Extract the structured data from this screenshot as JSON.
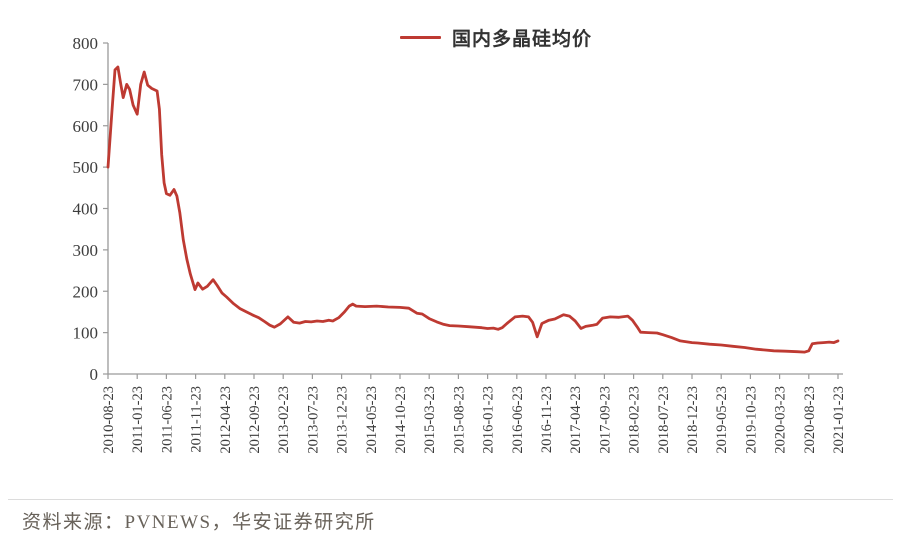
{
  "page": {
    "background_color": "#ffffff"
  },
  "legend": {
    "label": "国内多晶硅均价",
    "swatch_color": "#BE3A32"
  },
  "footer": {
    "source": "资料来源：PVNEWS，华安证券研究所"
  },
  "chart_data": {
    "type": "line",
    "title": "",
    "xlabel": "",
    "ylabel": "",
    "legend": [
      "国内多晶硅均价"
    ],
    "legend_position": "top-center",
    "grid": false,
    "ylim": [
      0,
      800
    ],
    "y_ticks": [
      0,
      100,
      200,
      300,
      400,
      500,
      600,
      700,
      800
    ],
    "x_range_months": [
      0,
      125
    ],
    "x_tick_months": [
      0,
      5,
      10,
      15,
      20,
      25,
      30,
      35,
      40,
      45,
      50,
      55,
      60,
      65,
      70,
      75,
      80,
      85,
      90,
      95,
      100,
      105,
      110,
      115,
      120,
      125
    ],
    "x_tick_labels": [
      "2010-08-23",
      "2011-01-23",
      "2011-06-23",
      "2011-11-23",
      "2012-04-23",
      "2012-09-23",
      "2013-02-23",
      "2013-07-23",
      "2013-12-23",
      "2014-05-23",
      "2014-10-23",
      "2015-03-23",
      "2015-08-23",
      "2016-01-23",
      "2016-06-23",
      "2016-11-23",
      "2017-04-23",
      "2017-09-23",
      "2018-02-23",
      "2018-07-23",
      "2018-12-23",
      "2019-05-23",
      "2019-10-23",
      "2020-03-23",
      "2020-08-23",
      "2021-01-23"
    ],
    "axis_color": "#9a9a9a",
    "tick_label_color": "#3d3d3d",
    "series": [
      {
        "name": "国内多晶硅均价",
        "color": "#BE3A32",
        "points": [
          [
            0,
            500
          ],
          [
            0.7,
            640
          ],
          [
            1.2,
            735
          ],
          [
            1.7,
            742
          ],
          [
            2.2,
            700
          ],
          [
            2.6,
            668
          ],
          [
            3.2,
            700
          ],
          [
            3.7,
            688
          ],
          [
            4.3,
            650
          ],
          [
            5.0,
            628
          ],
          [
            5.6,
            700
          ],
          [
            6.2,
            730
          ],
          [
            6.8,
            698
          ],
          [
            7.5,
            690
          ],
          [
            8.4,
            684
          ],
          [
            8.8,
            640
          ],
          [
            9.2,
            530
          ],
          [
            9.6,
            462
          ],
          [
            10.0,
            436
          ],
          [
            10.6,
            432
          ],
          [
            11.3,
            446
          ],
          [
            11.8,
            430
          ],
          [
            12.3,
            390
          ],
          [
            12.9,
            324
          ],
          [
            13.5,
            278
          ],
          [
            14.1,
            242
          ],
          [
            14.9,
            204
          ],
          [
            15.4,
            220
          ],
          [
            16.2,
            205
          ],
          [
            17.0,
            212
          ],
          [
            18.0,
            228
          ],
          [
            18.7,
            214
          ],
          [
            19.5,
            196
          ],
          [
            20.3,
            186
          ],
          [
            21.5,
            170
          ],
          [
            22.6,
            158
          ],
          [
            23.7,
            150
          ],
          [
            24.7,
            143
          ],
          [
            25.8,
            136
          ],
          [
            26.8,
            127
          ],
          [
            27.7,
            118
          ],
          [
            28.5,
            113
          ],
          [
            29.5,
            121
          ],
          [
            30.8,
            138
          ],
          [
            31.8,
            125
          ],
          [
            32.8,
            123
          ],
          [
            33.8,
            127
          ],
          [
            34.8,
            126
          ],
          [
            35.8,
            128
          ],
          [
            36.8,
            127
          ],
          [
            37.8,
            130
          ],
          [
            38.5,
            128
          ],
          [
            39.5,
            136
          ],
          [
            40.5,
            150
          ],
          [
            41.3,
            164
          ],
          [
            41.9,
            169
          ],
          [
            42.5,
            164
          ],
          [
            44.0,
            163
          ],
          [
            46.0,
            164
          ],
          [
            48.0,
            162
          ],
          [
            50.0,
            161
          ],
          [
            51.5,
            159
          ],
          [
            52.9,
            147
          ],
          [
            53.8,
            145
          ],
          [
            55.0,
            134
          ],
          [
            56.3,
            126
          ],
          [
            57.5,
            120
          ],
          [
            58.5,
            117
          ],
          [
            60.0,
            116
          ],
          [
            62.0,
            114
          ],
          [
            64.0,
            112
          ],
          [
            65.0,
            110
          ],
          [
            66.0,
            111
          ],
          [
            66.8,
            108
          ],
          [
            67.5,
            112
          ],
          [
            68.3,
            122
          ],
          [
            69.7,
            138
          ],
          [
            71.0,
            140
          ],
          [
            72.0,
            138
          ],
          [
            72.7,
            125
          ],
          [
            73.5,
            90
          ],
          [
            74.3,
            122
          ],
          [
            75.5,
            130
          ],
          [
            76.5,
            133
          ],
          [
            78.0,
            143
          ],
          [
            79.0,
            140
          ],
          [
            80.0,
            128
          ],
          [
            81.0,
            110
          ],
          [
            81.8,
            115
          ],
          [
            83.0,
            118
          ],
          [
            83.7,
            120
          ],
          [
            84.7,
            135
          ],
          [
            86.0,
            138
          ],
          [
            87.5,
            137
          ],
          [
            89.0,
            140
          ],
          [
            89.8,
            130
          ],
          [
            90.6,
            114
          ],
          [
            91.2,
            101
          ],
          [
            92.5,
            100
          ],
          [
            94.0,
            99
          ],
          [
            95.0,
            95
          ],
          [
            96.5,
            88
          ],
          [
            98.0,
            80
          ],
          [
            100.0,
            76
          ],
          [
            101.0,
            75
          ],
          [
            103.0,
            72
          ],
          [
            105.0,
            70
          ],
          [
            107.0,
            67
          ],
          [
            109.0,
            64
          ],
          [
            111.0,
            60
          ],
          [
            112.5,
            58
          ],
          [
            114.0,
            56
          ],
          [
            116.0,
            55
          ],
          [
            118.0,
            54
          ],
          [
            119.3,
            53
          ],
          [
            120.0,
            56
          ],
          [
            120.6,
            73
          ],
          [
            121.5,
            75
          ],
          [
            122.5,
            76
          ],
          [
            123.5,
            77
          ],
          [
            124.3,
            76
          ],
          [
            125.0,
            80
          ]
        ]
      }
    ]
  }
}
